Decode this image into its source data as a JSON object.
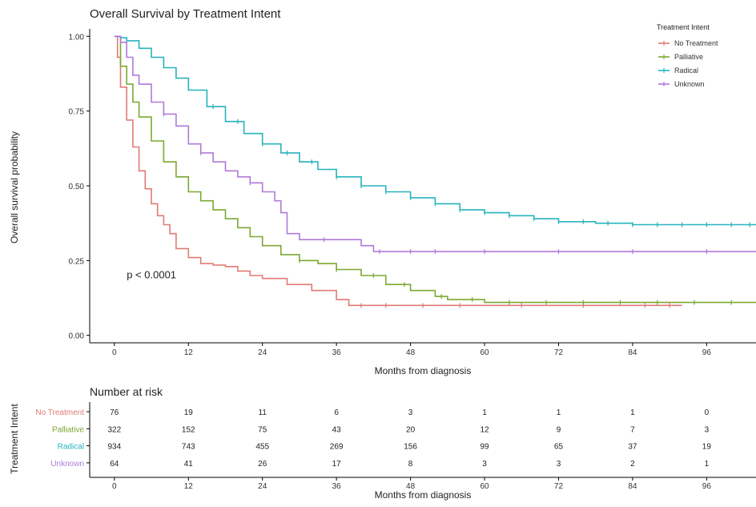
{
  "chart_data": {
    "type": "line",
    "title": "Overall Survival by Treatment Intent",
    "xlabel": "Months from diagnosis",
    "ylabel": "Overall survival probability",
    "xlim": [
      -4,
      104
    ],
    "ylim": [
      -0.025,
      1.025
    ],
    "x_ticks": [
      0,
      12,
      24,
      36,
      48,
      60,
      72,
      84,
      96
    ],
    "y_ticks": [
      0.0,
      0.25,
      0.5,
      0.75,
      1.0
    ],
    "y_tick_labels": [
      "0.00",
      "0.25",
      "0.50",
      "0.75",
      "1.00"
    ],
    "grid": false,
    "legend": {
      "title": "Treatment Intent",
      "position": "top-right"
    },
    "annotation": "p < 0.0001",
    "annotation_at": {
      "x": 2,
      "y": 0.19
    },
    "series": [
      {
        "name": "No Treatment",
        "color": "#e07b75",
        "x": [
          0,
          0.5,
          1,
          2,
          3,
          4,
          5,
          6,
          7,
          8,
          9,
          10,
          12,
          14,
          16,
          18,
          20,
          22,
          24,
          28,
          32,
          36,
          38,
          48,
          60,
          72,
          84,
          92
        ],
        "y": [
          1.0,
          0.93,
          0.83,
          0.72,
          0.63,
          0.55,
          0.49,
          0.44,
          0.4,
          0.37,
          0.34,
          0.29,
          0.26,
          0.24,
          0.235,
          0.23,
          0.215,
          0.2,
          0.19,
          0.17,
          0.15,
          0.12,
          0.1,
          0.1,
          0.1,
          0.1,
          0.1,
          0.1
        ],
        "censor_x": [
          40,
          44,
          50,
          56,
          66,
          76,
          86,
          90
        ]
      },
      {
        "name": "Palliative",
        "color": "#7ca832",
        "x": [
          0,
          1,
          2,
          3,
          4,
          6,
          8,
          10,
          12,
          14,
          16,
          18,
          20,
          22,
          24,
          27,
          30,
          33,
          36,
          40,
          44,
          48,
          52,
          54,
          60,
          72,
          84,
          96,
          104
        ],
        "y": [
          1.0,
          0.9,
          0.84,
          0.78,
          0.73,
          0.65,
          0.58,
          0.53,
          0.48,
          0.45,
          0.42,
          0.39,
          0.36,
          0.33,
          0.3,
          0.27,
          0.25,
          0.24,
          0.22,
          0.2,
          0.17,
          0.15,
          0.13,
          0.12,
          0.11,
          0.11,
          0.11,
          0.11,
          0.11
        ],
        "censor_x": [
          30,
          36,
          42,
          47,
          53,
          58,
          64,
          70,
          76,
          82,
          88,
          94,
          100
        ]
      },
      {
        "name": "Radical",
        "color": "#27b3bd",
        "x": [
          0,
          1,
          2,
          4,
          6,
          8,
          10,
          12,
          15,
          18,
          21,
          24,
          27,
          30,
          33,
          36,
          40,
          44,
          48,
          52,
          56,
          60,
          64,
          68,
          72,
          78,
          84,
          90,
          96,
          104
        ],
        "y": [
          1.0,
          0.995,
          0.985,
          0.96,
          0.93,
          0.895,
          0.86,
          0.82,
          0.765,
          0.715,
          0.675,
          0.64,
          0.61,
          0.58,
          0.555,
          0.53,
          0.5,
          0.48,
          0.46,
          0.44,
          0.42,
          0.41,
          0.4,
          0.39,
          0.38,
          0.375,
          0.37,
          0.37,
          0.37,
          0.37
        ],
        "censor_x": [
          16,
          20,
          24,
          28,
          32,
          36,
          40,
          44,
          48,
          52,
          56,
          60,
          64,
          68,
          72,
          76,
          80,
          84,
          88,
          92,
          96,
          100,
          103
        ]
      },
      {
        "name": "Unknown",
        "color": "#b07ad8",
        "x": [
          0,
          1,
          2,
          3,
          4,
          6,
          8,
          10,
          12,
          14,
          16,
          18,
          20,
          22,
          24,
          26,
          27,
          28,
          30,
          34,
          38,
          40,
          42,
          48,
          60,
          72,
          84,
          96,
          104
        ],
        "y": [
          1.0,
          0.98,
          0.93,
          0.87,
          0.84,
          0.78,
          0.74,
          0.7,
          0.64,
          0.61,
          0.58,
          0.55,
          0.53,
          0.51,
          0.48,
          0.45,
          0.41,
          0.34,
          0.32,
          0.32,
          0.32,
          0.3,
          0.28,
          0.28,
          0.28,
          0.28,
          0.28,
          0.28,
          0.28
        ],
        "censor_x": [
          8,
          14,
          22,
          34,
          43,
          48,
          52,
          60,
          72,
          84,
          96
        ]
      }
    ],
    "risk_table": {
      "title": "Number at risk",
      "ylabel": "Treatment Intent",
      "xlabel": "Months from diagnosis",
      "times": [
        0,
        12,
        24,
        36,
        48,
        60,
        72,
        84,
        96
      ],
      "rows": [
        {
          "name": "No Treatment",
          "color": "#e07b75",
          "counts": [
            "76",
            "19",
            "11",
            "6",
            "3",
            "1",
            "1",
            "1",
            "0"
          ]
        },
        {
          "name": "Palliative",
          "color": "#7ca832",
          "counts": [
            "322",
            "152",
            "75",
            "43",
            "20",
            "12",
            "9",
            "7",
            "3"
          ]
        },
        {
          "name": "Radical",
          "color": "#27b3bd",
          "counts": [
            "934",
            "743",
            "455",
            "269",
            "156",
            "99",
            "65",
            "37",
            "19"
          ]
        },
        {
          "name": "Unknown",
          "color": "#b07ad8",
          "counts": [
            "64",
            "41",
            "26",
            "17",
            "8",
            "3",
            "3",
            "2",
            "1"
          ]
        }
      ]
    }
  }
}
